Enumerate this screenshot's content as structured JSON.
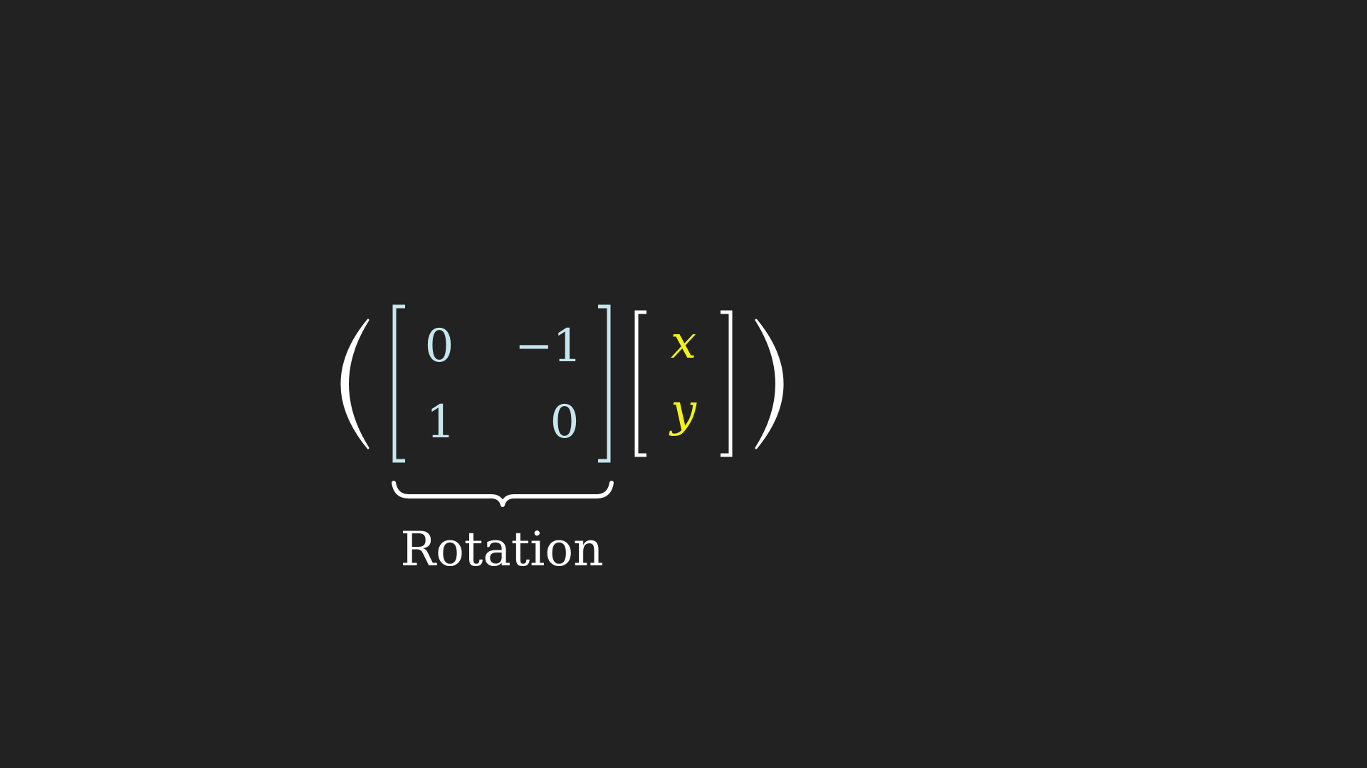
{
  "expression": {
    "matrix": {
      "color": "#c6e6ee",
      "rows": [
        [
          "0",
          "−1"
        ],
        [
          "1",
          "0"
        ]
      ]
    },
    "vector": {
      "color": "#f2f21a",
      "entries": [
        "x",
        "y"
      ]
    },
    "brace_label": "Rotation",
    "text_color": "#ffffff",
    "background": "#222222"
  }
}
